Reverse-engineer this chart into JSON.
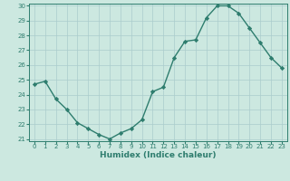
{
  "x": [
    0,
    1,
    2,
    3,
    4,
    5,
    6,
    7,
    8,
    9,
    10,
    11,
    12,
    13,
    14,
    15,
    16,
    17,
    18,
    19,
    20,
    21,
    22,
    23
  ],
  "y": [
    24.7,
    24.9,
    23.7,
    23.0,
    22.1,
    21.7,
    21.3,
    21.0,
    21.4,
    21.7,
    22.3,
    24.2,
    24.5,
    26.5,
    27.6,
    27.7,
    29.2,
    30.0,
    30.0,
    29.5,
    28.5,
    27.5,
    26.5,
    25.8
  ],
  "xlabel": "Humidex (Indice chaleur)",
  "ylim": [
    21,
    30
  ],
  "xlim": [
    -0.5,
    23.5
  ],
  "line_color": "#2e7d6e",
  "bg_color": "#cce8e0",
  "grid_color": "#aacccc",
  "marker": "D",
  "marker_size": 2.2,
  "line_width": 1.0,
  "yticks": [
    21,
    22,
    23,
    24,
    25,
    26,
    27,
    28,
    29,
    30
  ],
  "xticks": [
    0,
    1,
    2,
    3,
    4,
    5,
    6,
    7,
    8,
    9,
    10,
    11,
    12,
    13,
    14,
    15,
    16,
    17,
    18,
    19,
    20,
    21,
    22,
    23
  ],
  "xlabel_fontsize": 6.5,
  "tick_fontsize": 5.0
}
